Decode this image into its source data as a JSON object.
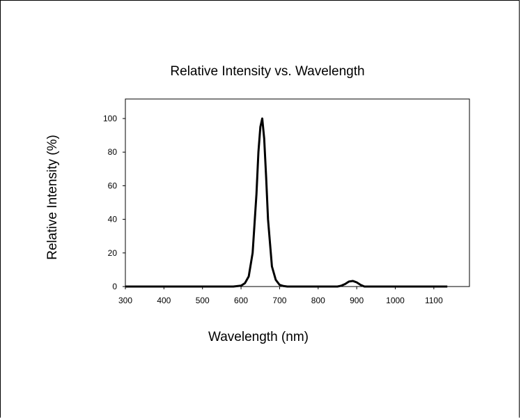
{
  "chart_data": {
    "type": "line",
    "title": "Relative Intensity vs. Wavelength",
    "xlabel": "Wavelength (nm)",
    "ylabel": "Relative Intensity (%)",
    "xlim": [
      300,
      1150
    ],
    "ylim": [
      0,
      110
    ],
    "x_ticks": [
      300,
      400,
      500,
      600,
      700,
      800,
      900,
      1000,
      1100
    ],
    "y_ticks": [
      0,
      20,
      40,
      60,
      80,
      100
    ],
    "grid": false,
    "legend": "none",
    "series": [
      {
        "color": "#000000",
        "x": [
          300,
          400,
          500,
          580,
          600,
          610,
          620,
          630,
          640,
          645,
          650,
          655,
          660,
          665,
          670,
          680,
          690,
          700,
          710,
          720,
          800,
          850,
          860,
          870,
          880,
          890,
          900,
          910,
          920,
          1000,
          1100,
          1135
        ],
        "y": [
          0,
          0,
          0,
          0,
          0.5,
          2,
          6,
          20,
          55,
          80,
          95,
          100,
          88,
          65,
          40,
          12,
          4,
          1,
          0.3,
          0,
          0,
          0,
          0.5,
          1.5,
          3,
          3.3,
          2.5,
          1,
          0,
          0,
          0,
          0
        ]
      }
    ]
  }
}
